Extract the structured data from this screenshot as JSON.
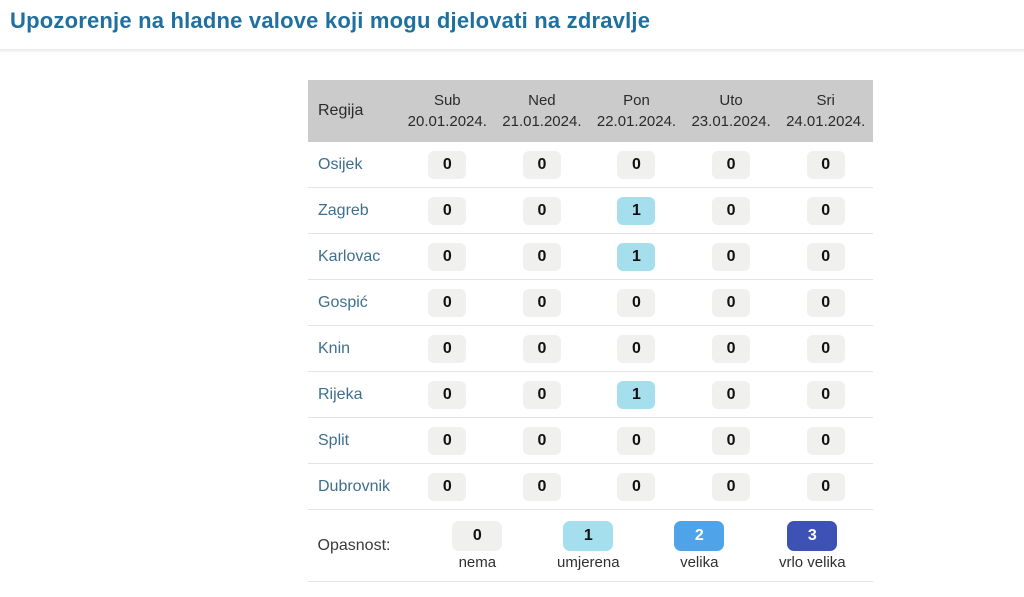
{
  "page": {
    "title": "Upozorenje na hladne valove koji mogu djelovati na zdravlje"
  },
  "table": {
    "region_header": "Regija",
    "columns": [
      {
        "day": "Sub",
        "date": "20.01.2024."
      },
      {
        "day": "Ned",
        "date": "21.01.2024."
      },
      {
        "day": "Pon",
        "date": "22.01.2024."
      },
      {
        "day": "Uto",
        "date": "23.01.2024."
      },
      {
        "day": "Sri",
        "date": "24.01.2024."
      }
    ],
    "rows": [
      {
        "region": "Osijek",
        "values": [
          "0",
          "0",
          "0",
          "0",
          "0"
        ]
      },
      {
        "region": "Zagreb",
        "values": [
          "0",
          "0",
          "1",
          "0",
          "0"
        ]
      },
      {
        "region": "Karlovac",
        "values": [
          "0",
          "0",
          "1",
          "0",
          "0"
        ]
      },
      {
        "region": "Gospić",
        "values": [
          "0",
          "0",
          "0",
          "0",
          "0"
        ]
      },
      {
        "region": "Knin",
        "values": [
          "0",
          "0",
          "0",
          "0",
          "0"
        ]
      },
      {
        "region": "Rijeka",
        "values": [
          "0",
          "0",
          "1",
          "0",
          "0"
        ]
      },
      {
        "region": "Split",
        "values": [
          "0",
          "0",
          "0",
          "0",
          "0"
        ]
      },
      {
        "region": "Dubrovnik",
        "values": [
          "0",
          "0",
          "0",
          "0",
          "0"
        ]
      }
    ]
  },
  "legend": {
    "label": "Opasnost:",
    "items": [
      {
        "value": "0",
        "label": "nema"
      },
      {
        "value": "1",
        "label": "umjerena"
      },
      {
        "value": "2",
        "label": "velika"
      },
      {
        "value": "3",
        "label": "vrlo velika"
      }
    ]
  },
  "colors": {
    "title_text": "#1f6f9f",
    "region_text": "#3e6f8e",
    "header_background": "#cbcbcb",
    "levels": {
      "0": {
        "bg": "#f0f0ef",
        "fg": "#111111"
      },
      "1": {
        "bg": "#a5dfee",
        "fg": "#111111"
      },
      "2": {
        "bg": "#4fa3e8",
        "fg": "#ffffff"
      },
      "3": {
        "bg": "#3e51b5",
        "fg": "#ffffff"
      }
    }
  }
}
